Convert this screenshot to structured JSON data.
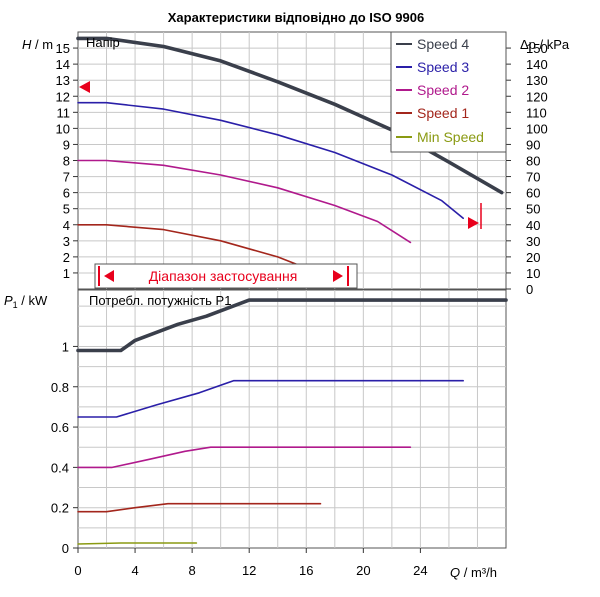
{
  "title": "Характеристики відповідно до ISO 9906",
  "colors": {
    "speed4": "#3a3f4b",
    "speed3": "#2a1fa8",
    "speed2": "#b0198c",
    "speed1": "#a3261c",
    "min": "#8a9a12",
    "grid": "#c8c8c8",
    "range": "#e8001c"
  },
  "chart_data": [
    {
      "type": "line",
      "panel_label": "Напір",
      "ylabel_left": {
        "symbol": "H",
        "unit": " / m"
      },
      "ylabel_right": {
        "symbol": "Δp",
        "unit": " / kPa"
      },
      "xlim": [
        0,
        30
      ],
      "ylim": [
        0,
        16
      ],
      "ylim_right": [
        0,
        160
      ],
      "y_ticks": [
        1,
        2,
        3,
        4,
        5,
        6,
        7,
        8,
        9,
        10,
        11,
        12,
        13,
        14,
        15
      ],
      "y_ticks_right": [
        0,
        10,
        20,
        30,
        40,
        50,
        60,
        70,
        80,
        90,
        100,
        110,
        120,
        130,
        140,
        150
      ],
      "legend_position": "top-right",
      "annotation": "Діапазон застосування",
      "range_markers": {
        "head_at_zero_flow": 14.2,
        "flow_at_bottom": 29.7,
        "head_at_max_flow": 4.3,
        "application_range_x": [
          1.5,
          20
        ]
      },
      "series": [
        {
          "name": "Speed 4",
          "color_key": "speed4",
          "x": [
            0,
            2,
            6,
            10,
            14,
            18,
            22,
            26,
            29.7
          ],
          "y": [
            15.6,
            15.6,
            15.1,
            14.2,
            12.9,
            11.5,
            9.9,
            7.9,
            6.0
          ]
        },
        {
          "name": "Speed 3",
          "color_key": "speed3",
          "x": [
            0,
            2,
            6,
            10,
            14,
            18,
            22,
            25.5,
            27
          ],
          "y": [
            11.6,
            11.6,
            11.2,
            10.5,
            9.6,
            8.5,
            7.1,
            5.5,
            4.4
          ]
        },
        {
          "name": "Speed 2",
          "color_key": "speed2",
          "x": [
            0,
            2,
            6,
            10,
            14,
            18,
            21,
            23.3
          ],
          "y": [
            8.0,
            8.0,
            7.7,
            7.1,
            6.3,
            5.2,
            4.2,
            2.9
          ]
        },
        {
          "name": "Speed 1",
          "color_key": "speed1",
          "x": [
            0,
            2,
            6,
            10,
            14,
            16.3
          ],
          "y": [
            4.0,
            4.0,
            3.7,
            3.0,
            2.0,
            1.2
          ]
        },
        {
          "name": "Min Speed",
          "color_key": "min",
          "x": [],
          "y": []
        }
      ]
    },
    {
      "type": "line",
      "panel_label": "Потребл. потужність P1",
      "ylabel": {
        "symbol": "P",
        "sub": "1",
        "unit": " / kW"
      },
      "xlabel": {
        "symbol": "Q",
        "unit": " / m³/h"
      },
      "xlim": [
        0,
        30
      ],
      "ylim": [
        0,
        1.28
      ],
      "x_ticks": [
        0,
        4,
        8,
        12,
        16,
        20,
        24
      ],
      "y_ticks": [
        "0",
        "0.2",
        "0.4",
        "0.6",
        "0.8",
        "1"
      ],
      "y_tick_values": [
        0,
        0.2,
        0.4,
        0.6,
        0.8,
        1.0
      ],
      "series": [
        {
          "name": "Speed 4",
          "color_key": "speed4",
          "x": [
            0,
            3,
            4,
            7,
            9,
            12,
            30
          ],
          "y": [
            0.98,
            0.98,
            1.03,
            1.11,
            1.15,
            1.23,
            1.23
          ]
        },
        {
          "name": "Speed 3",
          "color_key": "speed3",
          "x": [
            0,
            2.7,
            5.5,
            8.5,
            10.9,
            27
          ],
          "y": [
            0.65,
            0.65,
            0.71,
            0.77,
            0.83,
            0.83
          ]
        },
        {
          "name": "Speed 2",
          "color_key": "speed2",
          "x": [
            0,
            2.4,
            5,
            7.5,
            9.3,
            23.3
          ],
          "y": [
            0.4,
            0.4,
            0.44,
            0.48,
            0.5,
            0.5
          ]
        },
        {
          "name": "Speed 1",
          "color_key": "speed1",
          "x": [
            0,
            2,
            4,
            6.3,
            17
          ],
          "y": [
            0.18,
            0.18,
            0.2,
            0.22,
            0.22
          ]
        },
        {
          "name": "Min Speed",
          "color_key": "min",
          "x": [
            0,
            3,
            8.3
          ],
          "y": [
            0.02,
            0.025,
            0.025
          ]
        }
      ]
    }
  ]
}
